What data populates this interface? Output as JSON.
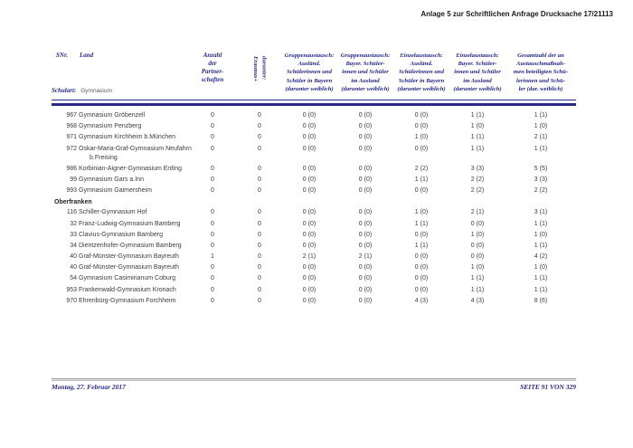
{
  "page": {
    "title": "Anlage 5 zur Schriftlichen Anfrage Drucksache 17/21113",
    "footer": {
      "date": "Montag, 27. Februar 2017",
      "page_number": "SEITE 91 VON 329"
    },
    "colors": {
      "header_navy": "#28288c",
      "body_text": "#3c3c3c",
      "footer_rule_grey": "#bdbdbd"
    }
  },
  "table": {
    "header": {
      "snr": "SNr.",
      "land": "Land",
      "schulart_label": "Schulart:",
      "schulart_value": "Gymnasium",
      "partnerships": "Anzahl\nder\nPartner-\nschaften",
      "erasmus_rotated": "darunter:\nErasmus+",
      "exchange_columns": [
        "Gruppenaustausch:\nAusländ.\nSchülerinnen und\nSchüler in Bayern\n(darunter weiblich)",
        "Gruppenaustausch:\nBayer. Schüler-\ninnen und Schüler\nim Ausland\n(darunter weiblich)",
        "Einzelaustausch:\nAusländ.\nSchülerinnen und\nSchüler in Bayern\n(darunter weiblich)",
        "Einzelaustausch:\nBayer. Schüler-\ninnen und Schüler\nim Ausland\n(darunter weiblich)",
        "Gesamtzahl der an\nAustauschmaßnah-\nmen beteiligten Schü-\nlerinnen und Schü-\nler (dar. weiblich)"
      ]
    },
    "sections": [
      {
        "label": "",
        "rows": [
          {
            "snr": "967",
            "name": "Gymnasium Gröbenzell",
            "values": [
              "0",
              "0",
              "0 (0)",
              "0 (0)",
              "0 (0)",
              "1 (1)",
              "1 (1)"
            ]
          },
          {
            "snr": "968",
            "name": "Gymnasium Penzberg",
            "values": [
              "0",
              "0",
              "0 (0)",
              "0 (0)",
              "0 (0)",
              "1 (0)",
              "1 (0)"
            ]
          },
          {
            "snr": "971",
            "name": "Gymnasium Kirchheim b.München",
            "values": [
              "0",
              "0",
              "0 (0)",
              "0 (0)",
              "1 (0)",
              "1 (1)",
              "2 (1)"
            ]
          },
          {
            "snr": "972",
            "name": "Oskar-Maria-Graf-Gymnasium Neufahrn\nb.Freising",
            "values": [
              "0",
              "0",
              "0 (0)",
              "0 (0)",
              "0 (0)",
              "1 (1)",
              "1 (1)"
            ]
          },
          {
            "snr": "986",
            "name": "Korbinian-Aigner-Gymnasium Erding",
            "values": [
              "0",
              "0",
              "0 (0)",
              "0 (0)",
              "2 (2)",
              "3 (3)",
              "5 (5)"
            ]
          },
          {
            "snr": "99",
            "name": "Gymnasium Gars a.Inn",
            "values": [
              "0",
              "0",
              "0 (0)",
              "0 (0)",
              "1 (1)",
              "2 (2)",
              "3 (3)"
            ]
          },
          {
            "snr": "993",
            "name": "Gymnasium Gaimersheim",
            "values": [
              "0",
              "0",
              "0 (0)",
              "0 (0)",
              "0 (0)",
              "2 (2)",
              "2 (2)"
            ]
          }
        ]
      },
      {
        "label": "Oberfranken",
        "rows": [
          {
            "snr": "116",
            "name": "Schiller-Gymnasium Hof",
            "values": [
              "0",
              "0",
              "0 (0)",
              "0 (0)",
              "1 (0)",
              "2 (1)",
              "3 (1)"
            ]
          },
          {
            "snr": "32",
            "name": "Franz-Ludwig-Gymnasium Bamberg",
            "values": [
              "0",
              "0",
              "0 (0)",
              "0 (0)",
              "1 (1)",
              "0 (0)",
              "1 (1)"
            ]
          },
          {
            "snr": "33",
            "name": "Clavius-Gymnasium Bamberg",
            "values": [
              "0",
              "0",
              "0 (0)",
              "0 (0)",
              "0 (0)",
              "1 (0)",
              "1 (0)"
            ]
          },
          {
            "snr": "34",
            "name": "Dientzenhofer-Gymnasium Bamberg",
            "values": [
              "0",
              "0",
              "0 (0)",
              "0 (0)",
              "1 (1)",
              "0 (0)",
              "1 (1)"
            ]
          },
          {
            "snr": "40",
            "name": "Graf-Münster-Gymnasium Bayreuth",
            "values": [
              "1",
              "0",
              "2 (1)",
              "2 (1)",
              "0 (0)",
              "0 (0)",
              "4 (2)"
            ]
          },
          {
            "snr": "40",
            "name": "Graf-Münster-Gymnasium Bayreuth",
            "values": [
              "0",
              "0",
              "0 (0)",
              "0 (0)",
              "0 (0)",
              "1 (0)",
              "1 (0)"
            ]
          },
          {
            "snr": "54",
            "name": "Gymnasium Casimirianum Coburg",
            "values": [
              "0",
              "0",
              "0 (0)",
              "0 (0)",
              "0 (0)",
              "1 (1)",
              "1 (1)"
            ]
          },
          {
            "snr": "953",
            "name": "Frankenwald-Gymnasium Kronach",
            "values": [
              "0",
              "0",
              "0 (0)",
              "0 (0)",
              "0 (0)",
              "1 (1)",
              "1 (1)"
            ]
          },
          {
            "snr": "970",
            "name": "Ehrenbürg-Gymnasium Forchheim",
            "values": [
              "0",
              "0",
              "0 (0)",
              "0 (0)",
              "4 (3)",
              "4 (3)",
              "8 (6)"
            ]
          }
        ]
      }
    ]
  }
}
